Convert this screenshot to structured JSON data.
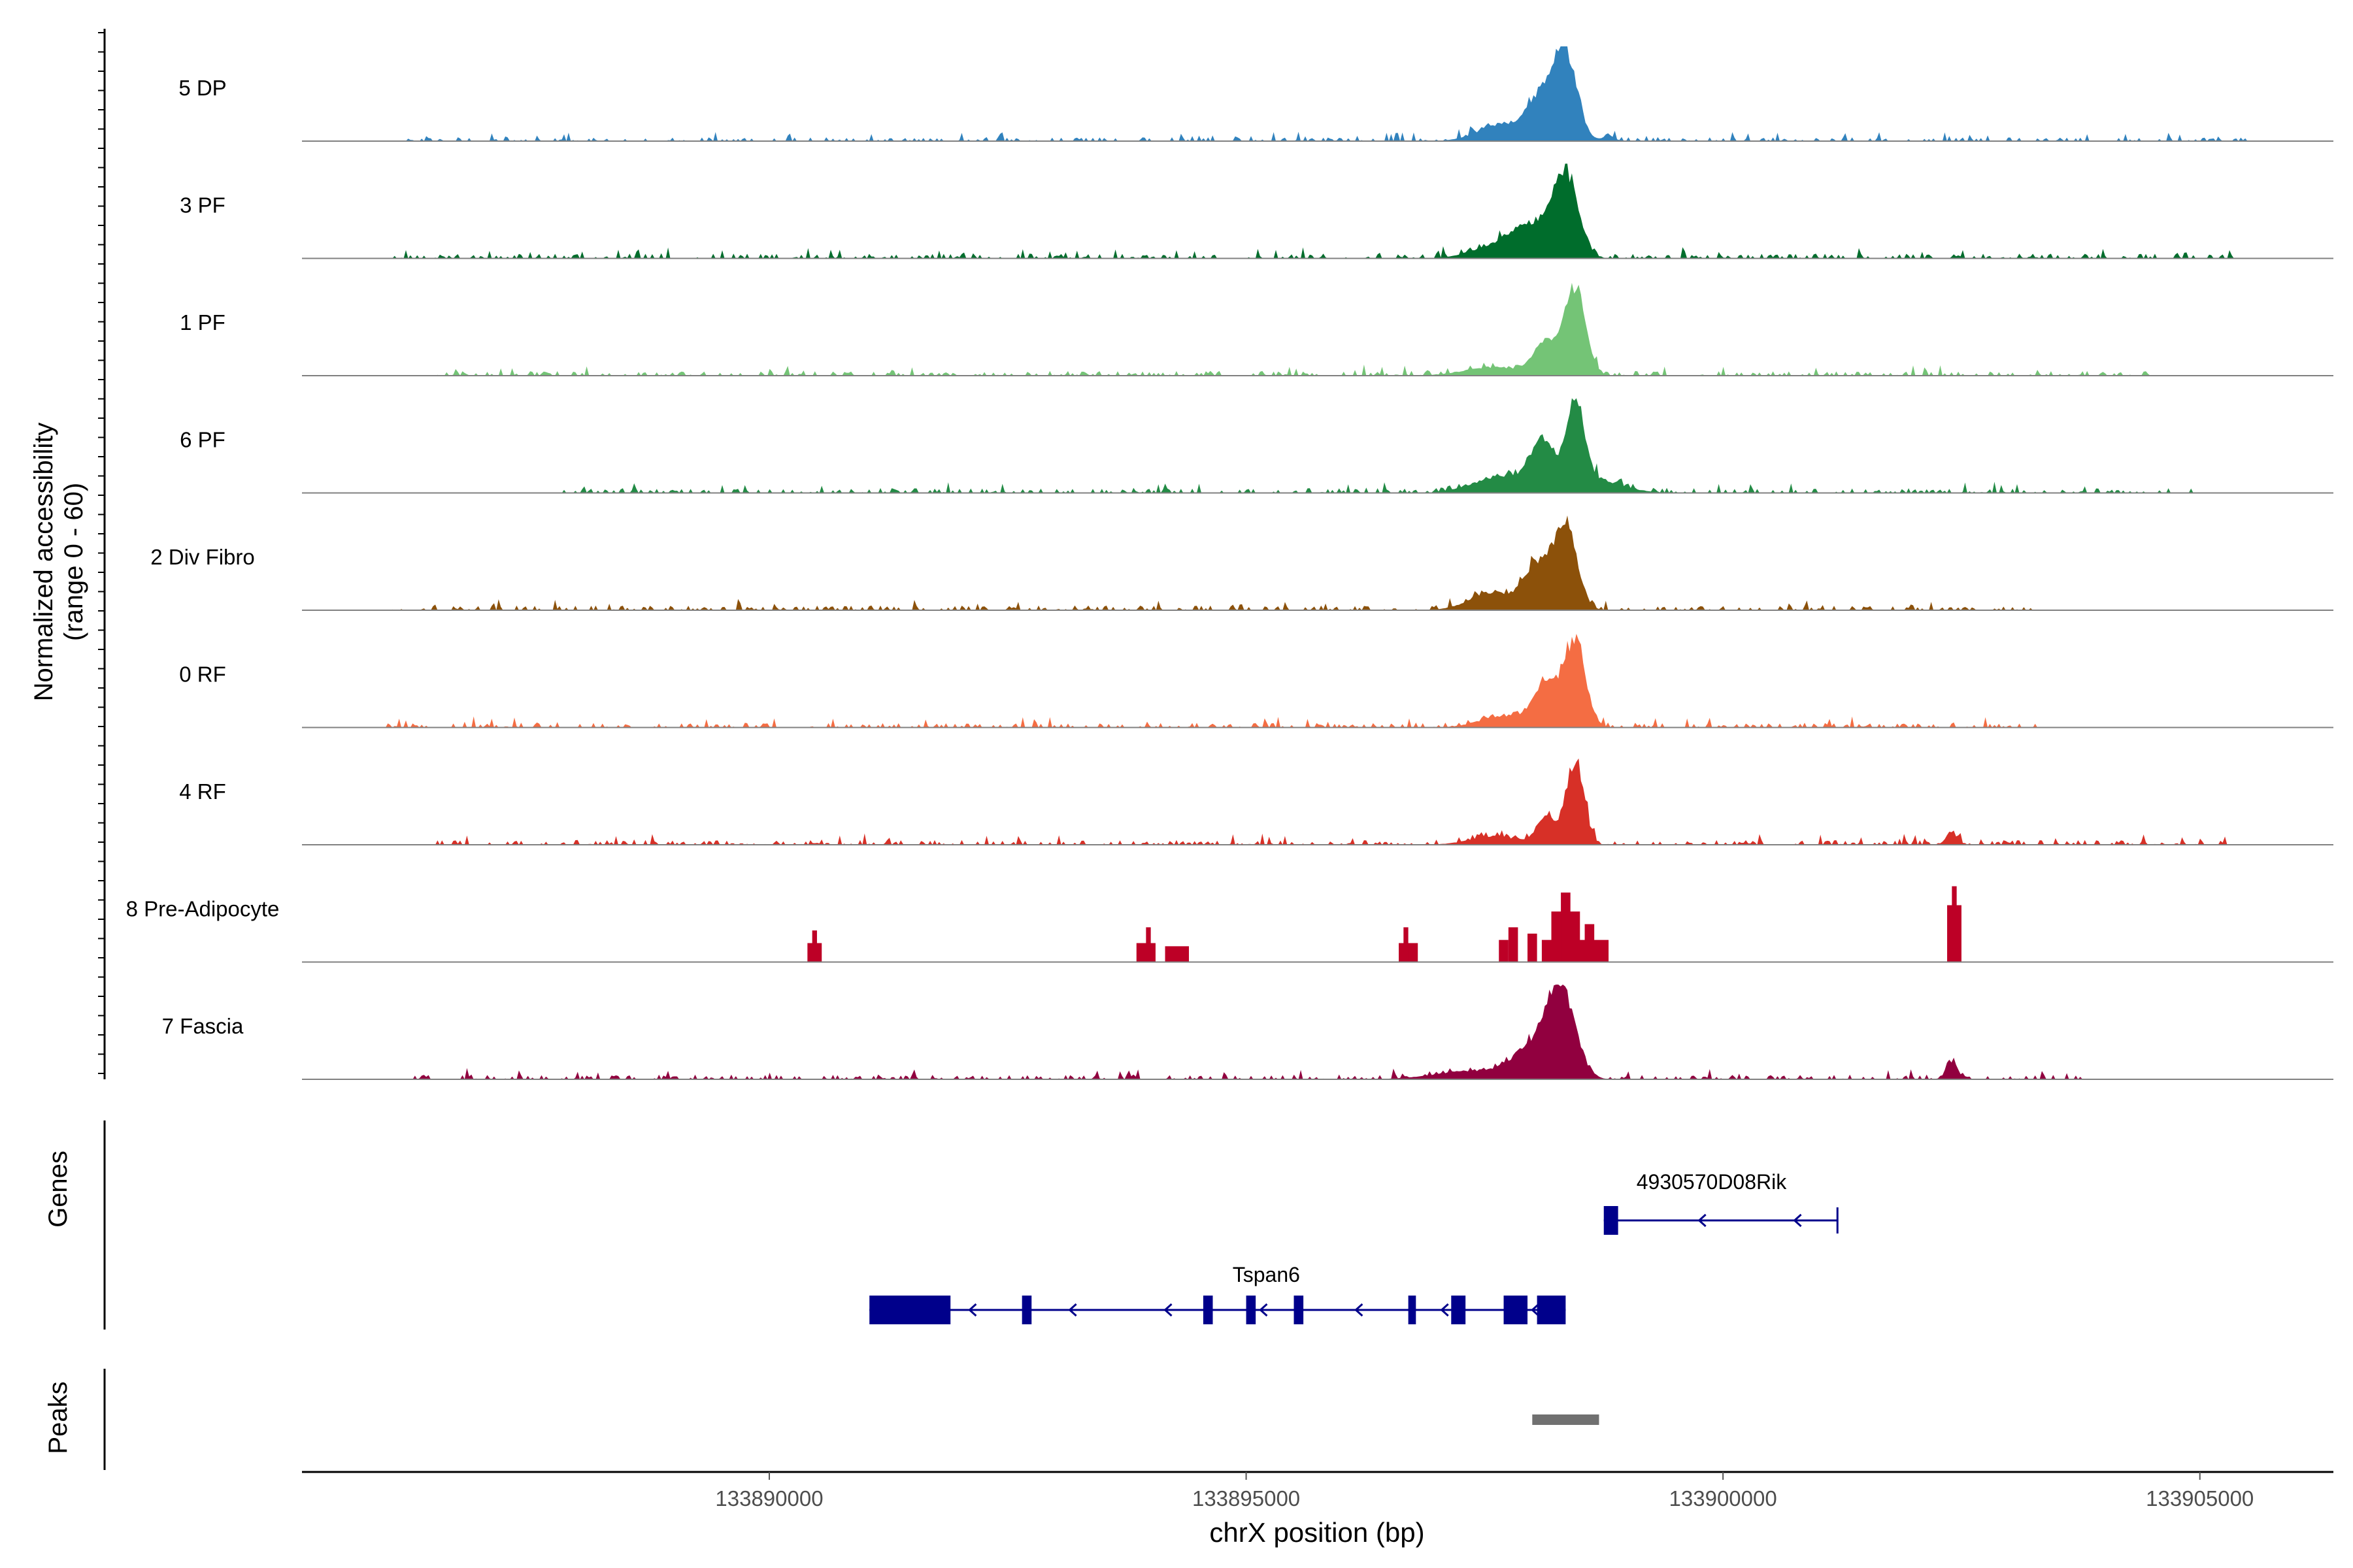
{
  "chart_data": {
    "type": "area",
    "title": "",
    "ylabel": "Normalized accessibility",
    "ylabel_range": "(range 0 - 60)",
    "xlabel": "chrX position (bp)",
    "xlim": [
      133885100,
      133906400
    ],
    "ylim": [
      0,
      60
    ],
    "x_ticks": [
      133890000,
      133895000,
      133900000,
      133905000
    ],
    "x_tick_labels": [
      "133890000",
      "133895000",
      "133900000",
      "133905000"
    ],
    "genes_label": "Genes",
    "peaks_label": "Peaks",
    "tracks": [
      {
        "name": "5 DP",
        "color": "#3182bd",
        "peaks": [
          [
            133898350,
            60,
            120
          ],
          [
            133898100,
            28,
            140
          ],
          [
            133897700,
            12,
            250
          ],
          [
            133898800,
            4,
            60
          ]
        ],
        "noise": [
          133886000,
          133905500,
          2.5
        ]
      },
      {
        "name": "3 PF",
        "color": "#006d2c",
        "peaks": [
          [
            133898350,
            58,
            130
          ],
          [
            133898000,
            22,
            200
          ],
          [
            133897600,
            8,
            250
          ]
        ],
        "noise": [
          133886000,
          133905500,
          3
        ]
      },
      {
        "name": "1 PF",
        "color": "#74c476",
        "peaks": [
          [
            133898450,
            60,
            110
          ],
          [
            133898150,
            22,
            130
          ],
          [
            133897600,
            6,
            300
          ]
        ],
        "noise": [
          133886500,
          133904500,
          3
        ]
      },
      {
        "name": "6 PF",
        "color": "#238b45",
        "peaks": [
          [
            133898450,
            60,
            90
          ],
          [
            133898100,
            30,
            120
          ],
          [
            133897700,
            12,
            300
          ],
          [
            133898600,
            10,
            300
          ]
        ],
        "noise": [
          133887800,
          133905000,
          3
        ]
      },
      {
        "name": "2 Div Fibro",
        "color": "#8c510a",
        "peaks": [
          [
            133898350,
            60,
            120
          ],
          [
            133898050,
            30,
            130
          ],
          [
            133897600,
            12,
            250
          ]
        ],
        "noise": [
          133886000,
          133903300,
          3
        ]
      },
      {
        "name": "0 RF",
        "color": "#f46d43",
        "peaks": [
          [
            133898450,
            60,
            110
          ],
          [
            133898150,
            30,
            130
          ],
          [
            133897700,
            8,
            250
          ]
        ],
        "noise": [
          133886000,
          133903300,
          3
        ]
      },
      {
        "name": "4 RF",
        "color": "#d73027",
        "peaks": [
          [
            133898450,
            60,
            90
          ],
          [
            133898150,
            20,
            100
          ],
          [
            133897600,
            6,
            250
          ],
          [
            133902400,
            8,
            60
          ]
        ],
        "noise": [
          133886500,
          133905300,
          3
        ]
      },
      {
        "name": "8 Pre-Adipocyte",
        "color": "#bd0026",
        "blocks": [
          [
            133890400,
            133890550,
            12
          ],
          [
            133890450,
            133890500,
            20
          ],
          [
            133893850,
            133894050,
            12
          ],
          [
            133893950,
            133894000,
            22
          ],
          [
            133894150,
            133894400,
            10
          ],
          [
            133896600,
            133896800,
            12
          ],
          [
            133896650,
            133896700,
            22
          ],
          [
            133897650,
            133897750,
            14
          ],
          [
            133897750,
            133897850,
            22
          ],
          [
            133897950,
            133898050,
            18
          ],
          [
            133898100,
            133898800,
            14
          ],
          [
            133898200,
            133898500,
            32
          ],
          [
            133898300,
            133898400,
            44
          ],
          [
            133898550,
            133898650,
            24
          ],
          [
            133902350,
            133902500,
            36
          ],
          [
            133902400,
            133902450,
            48
          ]
        ]
      },
      {
        "name": "7 Fascia",
        "color": "#91003f",
        "peaks": [
          [
            133898300,
            60,
            150
          ],
          [
            133898000,
            20,
            200
          ],
          [
            133897400,
            6,
            400
          ],
          [
            133902400,
            12,
            60
          ]
        ],
        "noise": [
          133886200,
          133903800,
          3
        ]
      }
    ],
    "genes": [
      {
        "name": "4930570D08Rik",
        "strand": "-",
        "start": 133898750,
        "end": 133901200,
        "exons": [
          [
            133898750,
            133898900
          ]
        ],
        "arrows": [
          133899750,
          133900750
        ]
      },
      {
        "name": "Tspan6",
        "strand": "-",
        "start": 133891050,
        "end": 133898350,
        "exons": [
          [
            133891050,
            133891900
          ],
          [
            133892650,
            133892750
          ],
          [
            133894550,
            133894650
          ],
          [
            133895000,
            133895100
          ],
          [
            133895500,
            133895600
          ],
          [
            133896700,
            133896780
          ],
          [
            133897150,
            133897300
          ],
          [
            133897700,
            133897950
          ],
          [
            133898050,
            133898350
          ]
        ],
        "arrows": [
          133892100,
          133893150,
          133894150,
          133895150,
          133896150,
          133897050,
          133898000
        ]
      }
    ],
    "peak_regions": [
      {
        "start": 133898000,
        "end": 133898700
      }
    ]
  }
}
